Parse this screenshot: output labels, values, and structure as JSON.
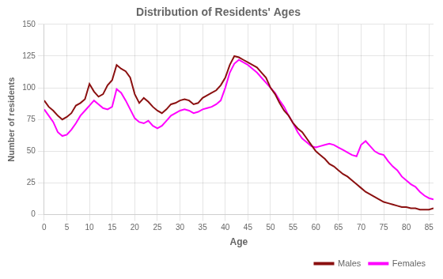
{
  "chart_data": {
    "type": "line",
    "title": "Distribution of Residents' Ages",
    "x_label": "Age",
    "y_label": "Number of residents",
    "x": [
      0,
      1,
      2,
      3,
      4,
      5,
      6,
      7,
      8,
      9,
      10,
      11,
      12,
      13,
      14,
      15,
      16,
      17,
      18,
      19,
      20,
      21,
      22,
      23,
      24,
      25,
      26,
      27,
      28,
      29,
      30,
      31,
      32,
      33,
      34,
      35,
      36,
      37,
      38,
      39,
      40,
      41,
      42,
      43,
      44,
      45,
      46,
      47,
      48,
      49,
      50,
      51,
      52,
      53,
      54,
      55,
      56,
      57,
      58,
      59,
      60,
      61,
      62,
      63,
      64,
      65,
      66,
      67,
      68,
      69,
      70,
      71,
      72,
      73,
      74,
      75,
      76,
      77,
      78,
      79,
      80,
      81,
      82,
      83,
      84,
      85,
      86
    ],
    "series": [
      {
        "name": "Males",
        "color": "#8B1010",
        "values": [
          90,
          85,
          82,
          78,
          75,
          77,
          80,
          86,
          88,
          91,
          103,
          97,
          93,
          95,
          102,
          106,
          118,
          115,
          113,
          108,
          95,
          88,
          92,
          89,
          85,
          82,
          80,
          83,
          87,
          88,
          90,
          91,
          90,
          87,
          88,
          92,
          94,
          96,
          98,
          102,
          108,
          118,
          125,
          124,
          122,
          120,
          118,
          116,
          112,
          108,
          100,
          95,
          88,
          82,
          78,
          72,
          68,
          65,
          60,
          55,
          50,
          47,
          44,
          40,
          38,
          35,
          32,
          30,
          27,
          24,
          21,
          18,
          16,
          14,
          12,
          10,
          9,
          8,
          7,
          6,
          6,
          5,
          5,
          4,
          4,
          4,
          5
        ]
      },
      {
        "name": "Females",
        "color": "#FF00FF",
        "values": [
          83,
          78,
          73,
          65,
          62,
          63,
          67,
          72,
          78,
          82,
          86,
          90,
          87,
          84,
          83,
          85,
          99,
          96,
          90,
          83,
          76,
          73,
          72,
          74,
          70,
          68,
          70,
          74,
          78,
          80,
          82,
          83,
          82,
          80,
          81,
          83,
          84,
          85,
          87,
          90,
          100,
          112,
          119,
          122,
          120,
          118,
          115,
          112,
          108,
          104,
          100,
          96,
          90,
          85,
          78,
          72,
          65,
          60,
          57,
          54,
          53,
          54,
          55,
          56,
          55,
          53,
          51,
          49,
          47,
          46,
          55,
          58,
          54,
          50,
          48,
          47,
          42,
          38,
          35,
          30,
          27,
          24,
          22,
          18,
          15,
          13,
          12
        ]
      }
    ],
    "xlim": [
      0,
      86
    ],
    "ylim": [
      0,
      150
    ],
    "xticks": [
      0,
      5,
      10,
      15,
      20,
      25,
      30,
      35,
      40,
      45,
      50,
      55,
      60,
      65,
      70,
      75,
      80,
      85
    ],
    "yticks": [
      0,
      25,
      50,
      75,
      100,
      125,
      150
    ],
    "grid": true,
    "legend": "lower right"
  }
}
